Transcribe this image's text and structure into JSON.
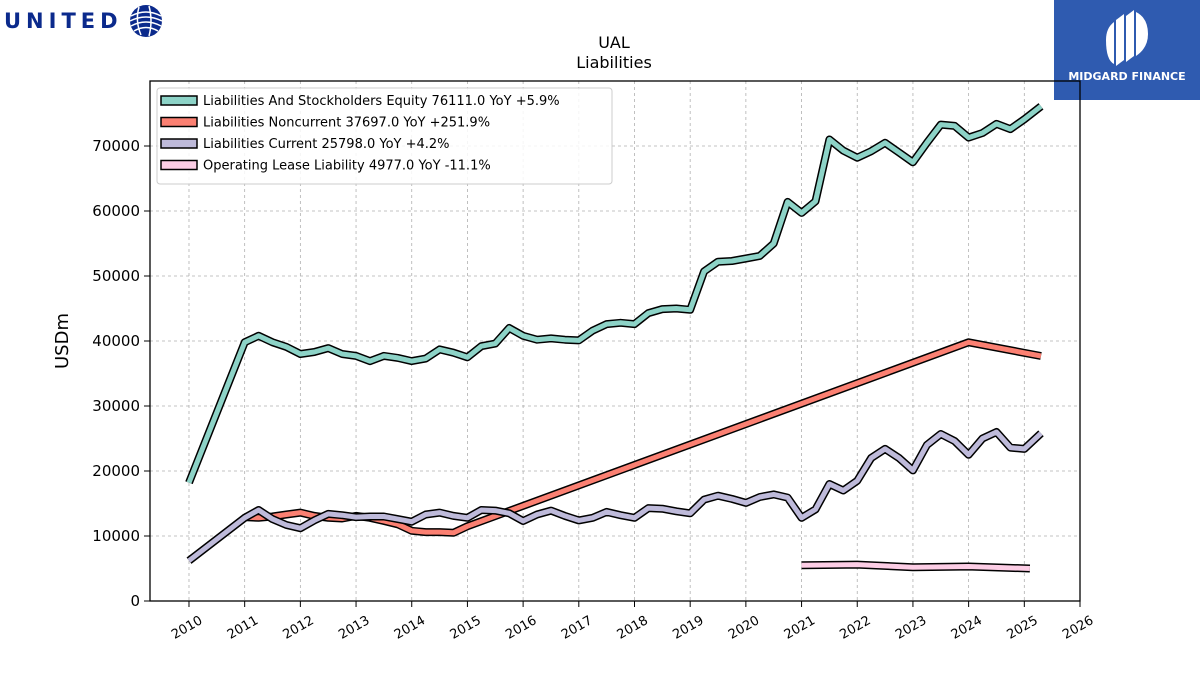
{
  "brand": {
    "company_logo_text": "UNITED",
    "watermark_text": "MIDGARD FINANCE"
  },
  "colors": {
    "brand_blue": "#0b2a8c",
    "midgard_bg": "#2f5bb0"
  },
  "chart_data": {
    "type": "line",
    "title": "UAL",
    "subtitle": "Liabilities",
    "xlabel": "",
    "ylabel": "USDm",
    "xlim": [
      2009.3,
      2026.0
    ],
    "ylim": [
      0,
      80000
    ],
    "x_ticks": [
      "2010",
      "2011",
      "2012",
      "2013",
      "2014",
      "2015",
      "2016",
      "2017",
      "2018",
      "2019",
      "2020",
      "2021",
      "2022",
      "2023",
      "2024",
      "2025",
      "2026"
    ],
    "y_ticks": [
      "0",
      "10000",
      "20000",
      "30000",
      "40000",
      "50000",
      "60000",
      "70000"
    ],
    "grid": true,
    "legend_position": "top-left",
    "series": [
      {
        "name": "Liabilities And Stockholders Equity  76111.0 YoY +5.9%",
        "color": "#8dd3c7",
        "points": [
          [
            2010.0,
            18200
          ],
          [
            2011.0,
            39800
          ],
          [
            2011.25,
            40800
          ],
          [
            2011.5,
            39800
          ],
          [
            2011.75,
            39100
          ],
          [
            2012.0,
            38000
          ],
          [
            2012.25,
            38300
          ],
          [
            2012.5,
            38900
          ],
          [
            2012.75,
            38000
          ],
          [
            2013.0,
            37700
          ],
          [
            2013.25,
            36900
          ],
          [
            2013.5,
            37700
          ],
          [
            2013.75,
            37400
          ],
          [
            2014.0,
            36900
          ],
          [
            2014.25,
            37300
          ],
          [
            2014.5,
            38700
          ],
          [
            2014.75,
            38200
          ],
          [
            2015.0,
            37500
          ],
          [
            2015.25,
            39200
          ],
          [
            2015.5,
            39600
          ],
          [
            2015.75,
            42000
          ],
          [
            2016.0,
            40800
          ],
          [
            2016.25,
            40200
          ],
          [
            2016.5,
            40400
          ],
          [
            2016.75,
            40200
          ],
          [
            2017.0,
            40100
          ],
          [
            2017.25,
            41600
          ],
          [
            2017.5,
            42600
          ],
          [
            2017.75,
            42800
          ],
          [
            2018.0,
            42600
          ],
          [
            2018.25,
            44300
          ],
          [
            2018.5,
            44900
          ],
          [
            2018.75,
            45000
          ],
          [
            2019.0,
            44800
          ],
          [
            2019.25,
            50700
          ],
          [
            2019.5,
            52200
          ],
          [
            2019.75,
            52300
          ],
          [
            2020.0,
            52700
          ],
          [
            2020.25,
            53100
          ],
          [
            2020.5,
            55000
          ],
          [
            2020.75,
            61400
          ],
          [
            2021.0,
            59700
          ],
          [
            2021.25,
            61500
          ],
          [
            2021.5,
            71000
          ],
          [
            2021.75,
            69300
          ],
          [
            2022.0,
            68200
          ],
          [
            2022.25,
            69200
          ],
          [
            2022.5,
            70500
          ],
          [
            2022.75,
            69000
          ],
          [
            2023.0,
            67500
          ],
          [
            2023.25,
            70500
          ],
          [
            2023.5,
            73300
          ],
          [
            2023.75,
            73100
          ],
          [
            2024.0,
            71300
          ],
          [
            2024.25,
            72000
          ],
          [
            2024.5,
            73400
          ],
          [
            2024.75,
            72600
          ],
          [
            2025.0,
            74100
          ],
          [
            2025.3,
            76111
          ]
        ]
      },
      {
        "name": "Liabilities Noncurrent  37697.0 YoY +251.9%",
        "color": "#fb8072",
        "points": [
          [
            2011.0,
            12900
          ],
          [
            2011.25,
            12800
          ],
          [
            2011.5,
            13000
          ],
          [
            2011.75,
            13300
          ],
          [
            2012.0,
            13600
          ],
          [
            2012.25,
            13100
          ],
          [
            2012.5,
            12800
          ],
          [
            2012.75,
            12700
          ],
          [
            2013.0,
            13100
          ],
          [
            2013.25,
            12800
          ],
          [
            2013.5,
            12300
          ],
          [
            2013.75,
            11800
          ],
          [
            2014.0,
            10800
          ],
          [
            2014.25,
            10600
          ],
          [
            2014.5,
            10600
          ],
          [
            2014.75,
            10500
          ],
          [
            2015.0,
            11500
          ],
          [
            2024.0,
            39800
          ],
          [
            2025.3,
            37697
          ]
        ]
      },
      {
        "name": "Liabilities Current  25798.0 YoY +4.2%",
        "color": "#bebada",
        "points": [
          [
            2010.0,
            6200
          ],
          [
            2011.0,
            12800
          ],
          [
            2011.25,
            14000
          ],
          [
            2011.5,
            12600
          ],
          [
            2011.75,
            11700
          ],
          [
            2012.0,
            11200
          ],
          [
            2012.25,
            12400
          ],
          [
            2012.5,
            13400
          ],
          [
            2012.75,
            13200
          ],
          [
            2013.0,
            12900
          ],
          [
            2013.25,
            13000
          ],
          [
            2013.5,
            13000
          ],
          [
            2013.75,
            12600
          ],
          [
            2014.0,
            12200
          ],
          [
            2014.25,
            13300
          ],
          [
            2014.5,
            13600
          ],
          [
            2014.75,
            13100
          ],
          [
            2015.0,
            12800
          ],
          [
            2015.25,
            14000
          ],
          [
            2015.5,
            13900
          ],
          [
            2015.75,
            13500
          ],
          [
            2016.0,
            12300
          ],
          [
            2016.25,
            13300
          ],
          [
            2016.5,
            13900
          ],
          [
            2016.75,
            13100
          ],
          [
            2017.0,
            12400
          ],
          [
            2017.25,
            12800
          ],
          [
            2017.5,
            13700
          ],
          [
            2017.75,
            13200
          ],
          [
            2018.0,
            12800
          ],
          [
            2018.25,
            14300
          ],
          [
            2018.5,
            14200
          ],
          [
            2018.75,
            13800
          ],
          [
            2019.0,
            13500
          ],
          [
            2019.25,
            15600
          ],
          [
            2019.5,
            16200
          ],
          [
            2019.75,
            15700
          ],
          [
            2020.0,
            15100
          ],
          [
            2020.25,
            16000
          ],
          [
            2020.5,
            16400
          ],
          [
            2020.75,
            15900
          ],
          [
            2021.0,
            12800
          ],
          [
            2021.25,
            14100
          ],
          [
            2021.5,
            18000
          ],
          [
            2021.75,
            17000
          ],
          [
            2022.0,
            18500
          ],
          [
            2022.25,
            22000
          ],
          [
            2022.5,
            23400
          ],
          [
            2022.75,
            22000
          ],
          [
            2023.0,
            20100
          ],
          [
            2023.25,
            24000
          ],
          [
            2023.5,
            25700
          ],
          [
            2023.75,
            24600
          ],
          [
            2024.0,
            22500
          ],
          [
            2024.25,
            25000
          ],
          [
            2024.5,
            26000
          ],
          [
            2024.75,
            23600
          ],
          [
            2025.0,
            23400
          ],
          [
            2025.3,
            25798
          ]
        ]
      },
      {
        "name": "Operating Lease Liability  4977.0 YoY -11.1%",
        "color": "#fccde5",
        "points": [
          [
            2021.0,
            5500
          ],
          [
            2022.0,
            5600
          ],
          [
            2023.0,
            5200
          ],
          [
            2024.0,
            5300
          ],
          [
            2025.1,
            5000
          ]
        ]
      }
    ]
  }
}
